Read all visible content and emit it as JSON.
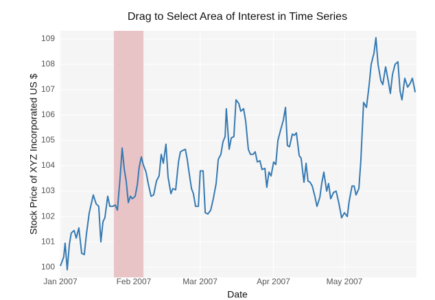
{
  "chart_data": {
    "type": "line",
    "title": "Drag to Select Area of Interest in Time Series",
    "x_label": "Date",
    "y_label": "Stock Price of XYZ Incorporated US $",
    "xlim": [
      0,
      150
    ],
    "xticks": [
      {
        "value": 0,
        "label": "Jan 2007"
      },
      {
        "value": 31,
        "label": "Feb 2007"
      },
      {
        "value": 59,
        "label": "Mar 2007"
      },
      {
        "value": 90,
        "label": "Apr 2007"
      },
      {
        "value": 120,
        "label": "May 2007"
      }
    ],
    "ylim": [
      99.6,
      109.32
    ],
    "yticks": [
      100,
      101,
      102,
      103,
      104,
      105,
      106,
      107,
      108,
      109
    ],
    "grid": true,
    "selection": [
      22.6,
      35.1
    ],
    "selection_color": "#e8c4c7",
    "series": [
      {
        "color": "#3579b1",
        "x": [
          0,
          1.4,
          2,
          2.9,
          3.8,
          4.6,
          5.8,
          6.7,
          7.8,
          9,
          10.1,
          11,
          12.2,
          13.9,
          15.1,
          16.2,
          17.1,
          18,
          18.8,
          20,
          20.9,
          22,
          23.2,
          24.1,
          25.2,
          26.1,
          27,
          27.8,
          28.7,
          29.6,
          30.4,
          31.6,
          32.5,
          33.3,
          34.2,
          35,
          36.2,
          37.1,
          38.3,
          39.4,
          40.6,
          41.7,
          42.6,
          43.5,
          44.6,
          45.5,
          46.7,
          47.5,
          48.7,
          49.9,
          50.7,
          51.6,
          52.8,
          53.6,
          54.5,
          55.4,
          56.2,
          57.1,
          58.3,
          59.1,
          60.3,
          61.2,
          62.3,
          63.5,
          64.6,
          65.8,
          66.7,
          67.8,
          68.7,
          69.6,
          70.1,
          71.3,
          72.2,
          73.3,
          74.2,
          75.4,
          76.2,
          77.4,
          78.3,
          79.4,
          80.3,
          81.4,
          82.3,
          83.2,
          84.3,
          85.2,
          86.4,
          87.2,
          88.1,
          89,
          90.1,
          91,
          91.9,
          93,
          94.2,
          95.1,
          95.9,
          96.8,
          98,
          98.8,
          99.7,
          100.9,
          101.7,
          102.9,
          103.8,
          104.6,
          105.5,
          106.4,
          107.5,
          108.4,
          109.6,
          110.4,
          111.3,
          112.5,
          113.3,
          114.2,
          115.4,
          116.5,
          117.7,
          118.8,
          120,
          121.2,
          122,
          123.2,
          124.1,
          124.9,
          126.1,
          126.9,
          128.1,
          129.3,
          130.4,
          131.3,
          132.5,
          133.3,
          134.2,
          135.4,
          136.2,
          137.4,
          138.6,
          139.4,
          140.3,
          141.4,
          142.6,
          143.5,
          144.3,
          145.5,
          146.7,
          147.8,
          148.7,
          149.9
        ],
        "values": [
          100.05,
          100.4,
          100.95,
          99.9,
          100.9,
          101.35,
          101.45,
          101.15,
          101.55,
          100.55,
          100.5,
          101.3,
          102.15,
          102.85,
          102.5,
          102.4,
          101.0,
          101.8,
          101.95,
          102.8,
          102.4,
          102.4,
          102.45,
          102.25,
          103.5,
          104.7,
          103.85,
          103.4,
          102.55,
          102.8,
          102.7,
          102.8,
          103.25,
          103.95,
          104.35,
          104.05,
          103.75,
          103.3,
          102.8,
          102.85,
          103.4,
          103.6,
          104.45,
          104.1,
          104.85,
          103.55,
          102.9,
          103.1,
          103.05,
          104.15,
          104.55,
          104.6,
          104.65,
          104.25,
          103.65,
          103.1,
          102.9,
          102.4,
          102.4,
          103.8,
          103.8,
          102.15,
          102.1,
          102.25,
          102.7,
          103.3,
          104.25,
          104.45,
          104.95,
          105.15,
          106.25,
          104.65,
          105.1,
          105.15,
          106.6,
          106.45,
          106.15,
          106.25,
          105.75,
          104.65,
          104.45,
          104.45,
          104.55,
          104.15,
          104.2,
          103.85,
          103.9,
          103.15,
          103.75,
          103.6,
          104.15,
          104.05,
          105.0,
          105.4,
          105.8,
          106.3,
          104.8,
          104.75,
          105.25,
          105.2,
          105.3,
          104.4,
          104.3,
          103.35,
          104.1,
          103.4,
          103.35,
          103.2,
          102.8,
          102.4,
          102.75,
          103.3,
          103.75,
          103.0,
          103.3,
          102.7,
          102.95,
          103.0,
          102.5,
          101.95,
          102.15,
          102.0,
          102.6,
          103.2,
          103.2,
          102.85,
          103.1,
          104.15,
          106.5,
          106.3,
          107.15,
          108.0,
          108.45,
          109.05,
          108.0,
          107.35,
          107.2,
          107.9,
          107.3,
          106.85,
          107.6,
          108.0,
          108.1,
          106.95,
          106.6,
          107.45,
          107.1,
          107.25,
          107.45,
          106.9
        ]
      }
    ]
  }
}
